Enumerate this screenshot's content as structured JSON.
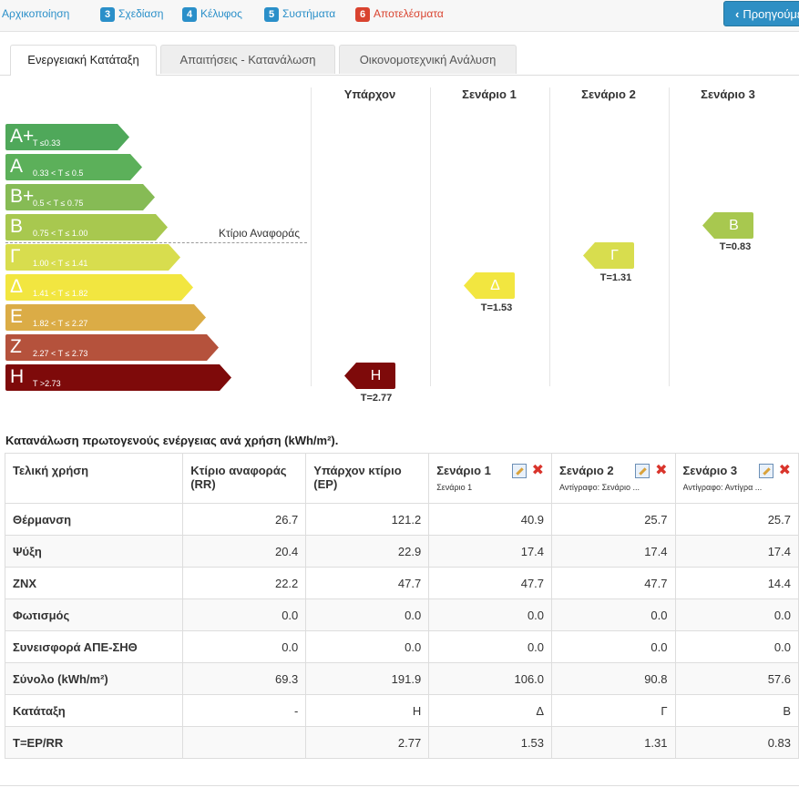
{
  "steps": [
    {
      "num": "",
      "label": "Αρχικοποίηση"
    },
    {
      "num": "3",
      "label": "Σχεδίαση"
    },
    {
      "num": "4",
      "label": "Κέλυφος"
    },
    {
      "num": "5",
      "label": "Συστήματα"
    },
    {
      "num": "6",
      "label": "Αποτελέσματα"
    }
  ],
  "prev_button": "Προηγούμενο",
  "tabs": [
    "Ενεργειακή Κατάταξη",
    "Απαιτήσεις - Κατανάλωση",
    "Οικονομοτεχνική Ανάλυση"
  ],
  "columns": [
    "Υπάρχον",
    "Σενάριο 1",
    "Σενάριο 2",
    "Σενάριο 3"
  ],
  "energy_classes": [
    {
      "letter": "A+",
      "range": "T ≤0.33",
      "color": "#4fa85a"
    },
    {
      "letter": "A",
      "range": "0.33 < T ≤ 0.5",
      "color": "#5cb05a"
    },
    {
      "letter": "B+",
      "range": "0.5 < T ≤ 0.75",
      "color": "#86bb55"
    },
    {
      "letter": "B",
      "range": "0.75 < T ≤ 1.00",
      "color": "#a8c84f"
    },
    {
      "letter": "Γ",
      "range": "1.00 < T ≤ 1.41",
      "color": "#d8dd4e"
    },
    {
      "letter": "Δ",
      "range": "1.41 < T ≤ 1.82",
      "color": "#f2e640"
    },
    {
      "letter": "Ε",
      "range": "1.82 < T ≤ 2.27",
      "color": "#dbac46"
    },
    {
      "letter": "Ζ",
      "range": "2.27 < T ≤ 2.73",
      "color": "#b5523c"
    },
    {
      "letter": "Η",
      "range": "T >2.73",
      "color": "#7e0a0a"
    }
  ],
  "reference_label": "Κτίριο Αναφοράς",
  "markers": [
    {
      "letter": "Η",
      "t_label": "T=2.77"
    },
    {
      "letter": "Δ",
      "t_label": "T=1.53"
    },
    {
      "letter": "Γ",
      "t_label": "T=1.31"
    },
    {
      "letter": "Β",
      "t_label": "T=0.83"
    }
  ],
  "table": {
    "title": "Κατανάλωση πρωτογενούς ενέργειας ανά χρήση (kWh/m²).",
    "headers": [
      "Τελική χρήση",
      "Κτίριο αναφοράς (RR)",
      "Υπάρχον κτίριο (EP)",
      "Σενάριο 1",
      "Σενάριο 2",
      "Σενάριο 3"
    ],
    "header_subs": [
      "",
      "",
      "",
      "Σενάριο 1",
      "Αντίγραφο: Σενάριο ...",
      "Αντίγραφο: Αντίγρα ..."
    ],
    "rows": [
      [
        "Θέρμανση",
        "26.7",
        "121.2",
        "40.9",
        "25.7",
        "25.7"
      ],
      [
        "Ψύξη",
        "20.4",
        "22.9",
        "17.4",
        "17.4",
        "17.4"
      ],
      [
        "ΖΝΧ",
        "22.2",
        "47.7",
        "47.7",
        "47.7",
        "14.4"
      ],
      [
        "Φωτισμός",
        "0.0",
        "0.0",
        "0.0",
        "0.0",
        "0.0"
      ],
      [
        "Συνεισφορά ΑΠΕ-ΣΗΘ",
        "0.0",
        "0.0",
        "0.0",
        "0.0",
        "0.0"
      ],
      [
        "Σύνολο (kWh/m²)",
        "69.3",
        "191.9",
        "106.0",
        "90.8",
        "57.6"
      ],
      [
        "Κατάταξη",
        "-",
        "Η",
        "Δ",
        "Γ",
        "Β"
      ],
      [
        "T=EP/RR",
        "",
        "2.77",
        "1.53",
        "1.31",
        "0.83"
      ]
    ]
  },
  "colors": {
    "accent": "#2a8fc9",
    "active_step": "#d9432f"
  }
}
